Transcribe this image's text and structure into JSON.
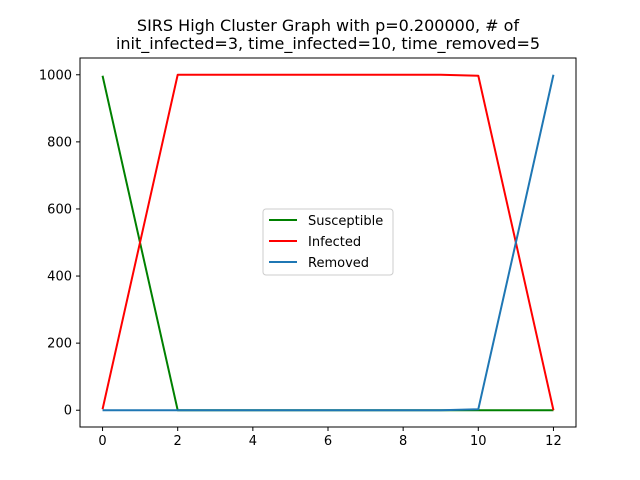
{
  "chart_data": {
    "type": "line",
    "title_lines": [
      "SIRS High Cluster Graph with p=0.200000, # of",
      "init_infected=3, time_infected=10, time_removed=5"
    ],
    "xlabel": "",
    "ylabel": "",
    "xlim": [
      -0.6,
      12.6
    ],
    "ylim": [
      -50,
      1050
    ],
    "xticks": [
      0,
      2,
      4,
      6,
      8,
      10,
      12
    ],
    "yticks": [
      0,
      200,
      400,
      600,
      800,
      1000
    ],
    "grid": false,
    "legend_position": "center",
    "series": [
      {
        "name": "Susceptible",
        "color": "#008000",
        "x": [
          0,
          2,
          3,
          4,
          5,
          6,
          7,
          8,
          9,
          10,
          11,
          12
        ],
        "y": [
          997,
          0,
          0,
          0,
          0,
          0,
          0,
          0,
          0,
          0,
          0,
          0
        ]
      },
      {
        "name": "Infected",
        "color": "#ff0000",
        "x": [
          0,
          2,
          3,
          4,
          5,
          6,
          7,
          8,
          9,
          10,
          11,
          12
        ],
        "y": [
          3,
          1000,
          1000,
          1000,
          1000,
          1000,
          1000,
          1000,
          1000,
          997,
          500,
          0
        ]
      },
      {
        "name": "Removed",
        "color": "#1f77b4",
        "x": [
          0,
          2,
          3,
          4,
          5,
          6,
          7,
          8,
          9,
          10,
          11,
          12
        ],
        "y": [
          0,
          0,
          0,
          0,
          0,
          0,
          0,
          0,
          0,
          3,
          500,
          1000
        ]
      }
    ]
  }
}
